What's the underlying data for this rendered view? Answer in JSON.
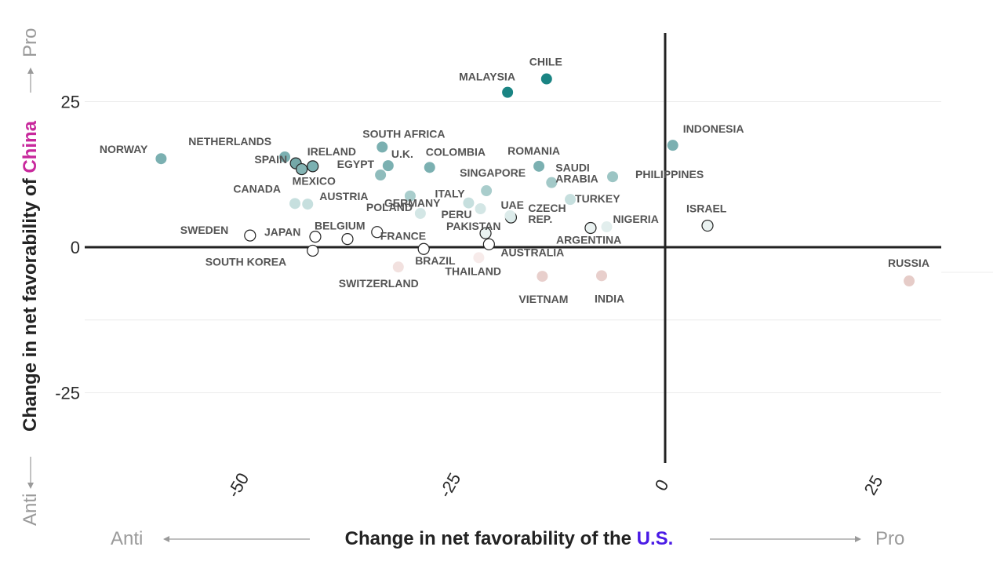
{
  "chart_data": {
    "type": "scatter",
    "xlabel": {
      "prefix": "Change in net favorability of the ",
      "highlight": "U.S."
    },
    "ylabel": {
      "prefix": "Change in net favorability of ",
      "highlight": "China"
    },
    "x_direction": {
      "low": "Anti",
      "high": "Pro"
    },
    "y_direction": {
      "low": "Anti",
      "high": "Pro"
    },
    "xlim": [
      -68,
      32
    ],
    "ylim": [
      -45,
      37
    ],
    "x_ticks": [
      "-50",
      "-25",
      "0",
      "25"
    ],
    "y_ticks": [
      "25",
      "0",
      "-25"
    ],
    "colors": {
      "us_highlight": "#4a1be6",
      "china_highlight": "#c8289c",
      "axis": "#222222"
    },
    "points": [
      {
        "label": "NORWAY",
        "x": -59.5,
        "y": 15.2,
        "color": "#7bb0b1"
      },
      {
        "label": "NETHERLANDS",
        "x": -44.9,
        "y": 15.5,
        "color": "#7bb0b1"
      },
      {
        "label": "SPAIN",
        "x": -43.6,
        "y": 14.4,
        "color": "#74a8a8",
        "outline": true
      },
      {
        "label": "IRELAND",
        "x": -41.6,
        "y": 13.9,
        "color": "#7bb0b1",
        "outline": true
      },
      {
        "label": "MEXICO",
        "x": -42.9,
        "y": 13.4,
        "color": "#84b4b4",
        "outline": true
      },
      {
        "label": "SOUTH AFRICA",
        "x": -33.4,
        "y": 17.2,
        "color": "#7bb0b1"
      },
      {
        "label": "U.K.",
        "x": -32.7,
        "y": 14.0,
        "color": "#7bb0b1"
      },
      {
        "label": "EGYPT",
        "x": -33.6,
        "y": 12.4,
        "color": "#8fbcbc"
      },
      {
        "label": "COLOMBIA",
        "x": -27.8,
        "y": 13.7,
        "color": "#7bb0b1"
      },
      {
        "label": "GERMANY",
        "x": -30.1,
        "y": 8.8,
        "color": "#a9cdcc"
      },
      {
        "label": "CANADA",
        "x": -43.7,
        "y": 7.5,
        "color": "#c6dfde"
      },
      {
        "label": "AUSTRIA",
        "x": -42.2,
        "y": 7.4,
        "color": "#c6dfde"
      },
      {
        "label": "POLAND",
        "x": -28.9,
        "y": 5.8,
        "color": "#d3e6e5"
      },
      {
        "label": "ITALY",
        "x": -23.2,
        "y": 7.6,
        "color": "#c6dfde"
      },
      {
        "label": "SINGAPORE",
        "x": -21.1,
        "y": 9.7,
        "color": "#a9cdcc"
      },
      {
        "label": "PERU",
        "x": -21.8,
        "y": 6.6,
        "color": "#d3e6e5"
      },
      {
        "label": "MALAYSIA",
        "x": -18.6,
        "y": 26.6,
        "color": "#1a8483"
      },
      {
        "label": "CHILE",
        "x": -14.0,
        "y": 28.9,
        "color": "#1a8483"
      },
      {
        "label": "ROMANIA",
        "x": -14.9,
        "y": 13.9,
        "color": "#7bb0b1"
      },
      {
        "label": "SAUDI ARABIA",
        "x": -13.4,
        "y": 11.1,
        "color": "#a3c9c8"
      },
      {
        "label": "PHILIPPINES",
        "x": -6.2,
        "y": 12.1,
        "color": "#9cc5c4"
      },
      {
        "label": "INDONESIA",
        "x": 0.9,
        "y": 17.5,
        "color": "#7bb0b1"
      },
      {
        "label": "TURKEY",
        "x": -11.2,
        "y": 8.2,
        "color": "#c6dfde"
      },
      {
        "label": "UAE",
        "x": -18.2,
        "y": 5.1,
        "color": "#dcebea",
        "outline": true
      },
      {
        "label": "CZECH REP.",
        "x": -18.3,
        "y": 5.4,
        "color": "#dcebea"
      },
      {
        "label": "PAKISTAN",
        "x": -21.2,
        "y": 2.4,
        "color": "#eaf2f1",
        "outline": true
      },
      {
        "label": "ARGENTINA",
        "x": -8.8,
        "y": 3.3,
        "color": "#eaf2f1",
        "outline": true
      },
      {
        "label": "NIGERIA",
        "x": -6.9,
        "y": 3.5,
        "color": "#e2eeed"
      },
      {
        "label": "ISRAEL",
        "x": 5.0,
        "y": 3.7,
        "color": "#eaf2f1",
        "outline": true
      },
      {
        "label": "SWEDEN",
        "x": -49.0,
        "y": 2.0,
        "color": "#ffffff",
        "outline": true
      },
      {
        "label": "JAPAN",
        "x": -41.3,
        "y": 1.8,
        "color": "#ffffff",
        "outline": true
      },
      {
        "label": "BELGIUM",
        "x": -37.5,
        "y": 1.4,
        "color": "#ffffff",
        "outline": true
      },
      {
        "label": "FRANCE",
        "x": -34.0,
        "y": 2.6,
        "color": "#ffffff",
        "outline": true
      },
      {
        "label": "SOUTH KOREA",
        "x": -41.6,
        "y": -0.6,
        "color": "#ffffff",
        "outline": true
      },
      {
        "label": "BRAZIL",
        "x": -28.5,
        "y": -0.3,
        "color": "#ffffff",
        "outline": true
      },
      {
        "label": "AUSTRALIA",
        "x": -20.8,
        "y": 0.5,
        "color": "#ffffff",
        "outline": true
      },
      {
        "label": "THAILAND",
        "x": -22.0,
        "y": -1.8,
        "color": "#f7ebea"
      },
      {
        "label": "SWITZERLAND",
        "x": -31.5,
        "y": -3.4,
        "color": "#f2e1df"
      },
      {
        "label": "VIETNAM",
        "x": -14.5,
        "y": -5.0,
        "color": "#e8cfcc"
      },
      {
        "label": "INDIA",
        "x": -7.5,
        "y": -4.9,
        "color": "#e8cfcc"
      },
      {
        "label": "RUSSIA",
        "x": 28.8,
        "y": -5.8,
        "color": "#e6ccc8"
      }
    ]
  }
}
